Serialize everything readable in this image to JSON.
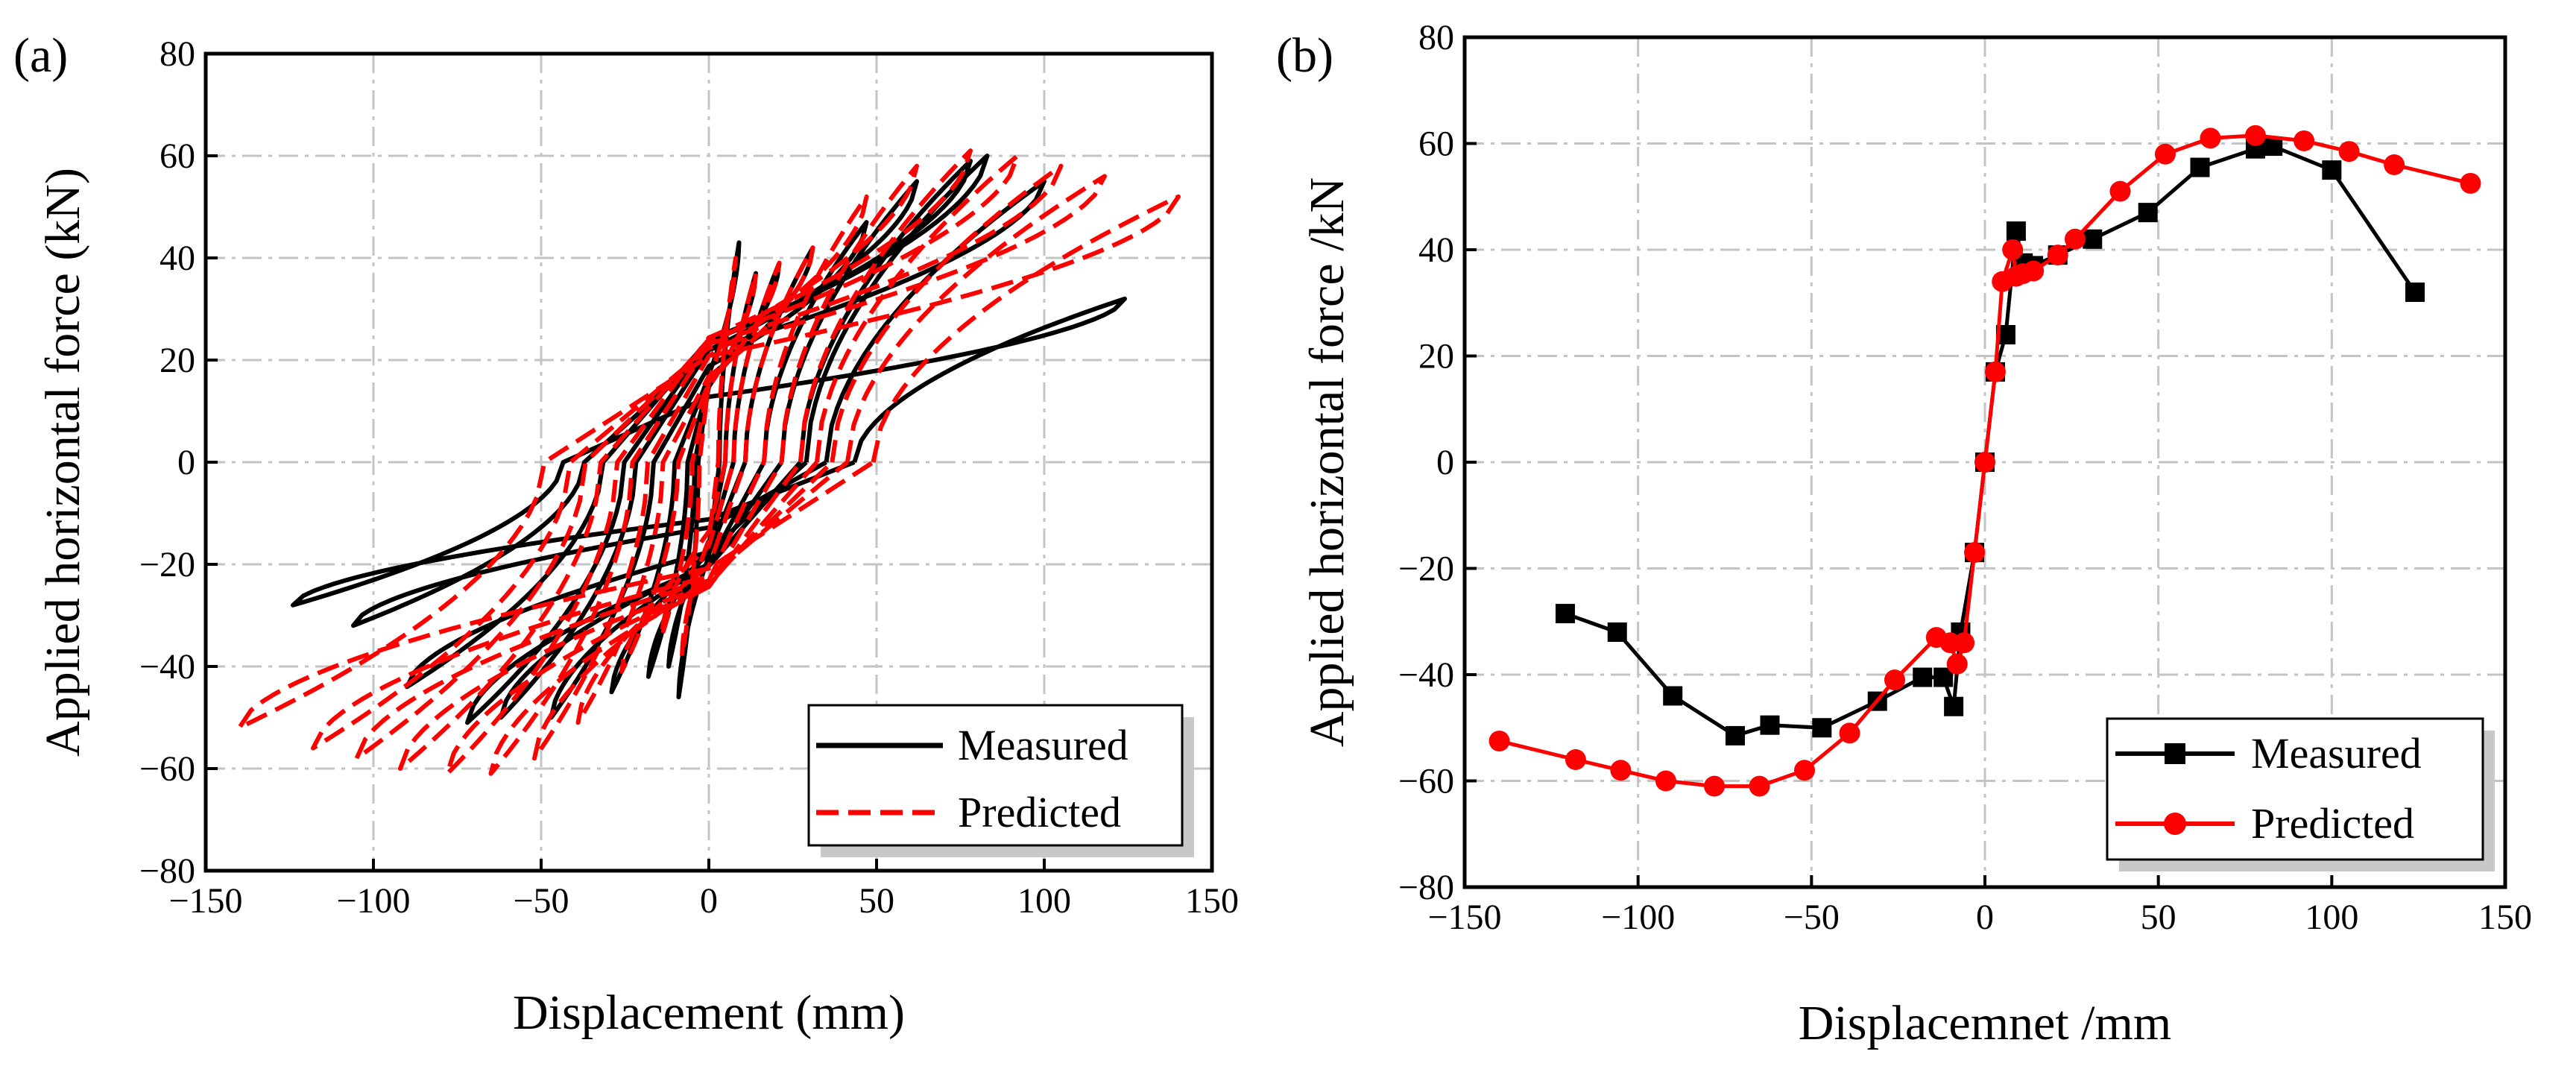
{
  "chart_data": [
    {
      "id": "a",
      "panel_label": "(a)",
      "type": "line",
      "title": "",
      "xlabel": "Displacement (mm)",
      "ylabel": "Applied horizontal force (kN)",
      "xlim": [
        -150,
        150
      ],
      "ylim": [
        -80,
        80
      ],
      "xticks": [
        -150,
        -100,
        -50,
        0,
        50,
        100,
        150
      ],
      "yticks": [
        -80,
        -60,
        -40,
        -20,
        0,
        20,
        40,
        60,
        80
      ],
      "xtick_labels": [
        "−150",
        "−100",
        "−50",
        "0",
        "50",
        "100",
        "150"
      ],
      "ytick_labels": [
        "−80",
        "−60",
        "−40",
        "−20",
        "0",
        "20",
        "40",
        "60",
        "80"
      ],
      "grid": true,
      "legend_position": "bottom-right",
      "series": [
        {
          "name": "Measured",
          "color": "#000000",
          "style": "solid",
          "loops": [
            {
              "pos_disp": 9,
              "pos_force": 43,
              "neg_disp": -9,
              "neg_force": -46
            },
            {
              "pos_disp": 14,
              "pos_force": 37,
              "neg_disp": -12,
              "neg_force": -40
            },
            {
              "pos_disp": 21,
              "pos_force": 39,
              "neg_disp": -18,
              "neg_force": -42
            },
            {
              "pos_disp": 31,
              "pos_force": 42,
              "neg_disp": -29,
              "neg_force": -45
            },
            {
              "pos_disp": 47,
              "pos_force": 47,
              "neg_disp": -47,
              "neg_force": -50
            },
            {
              "pos_disp": 62,
              "pos_force": 55,
              "neg_disp": -62,
              "neg_force": -50
            },
            {
              "pos_disp": 78,
              "pos_force": 59,
              "neg_disp": -72,
              "neg_force": -51
            },
            {
              "pos_disp": 83,
              "pos_force": 60,
              "neg_disp": -90,
              "neg_force": -44
            },
            {
              "pos_disp": 100,
              "pos_force": 55,
              "neg_disp": -106,
              "neg_force": -32
            },
            {
              "pos_disp": 124,
              "pos_force": 32,
              "neg_disp": -124,
              "neg_force": -28
            }
          ]
        },
        {
          "name": "Predicted",
          "color": "#ff0000",
          "style": "dashed",
          "loops": [
            {
              "pos_disp": 8,
              "pos_force": 40,
              "neg_disp": -8,
              "neg_force": -38
            },
            {
              "pos_disp": 14,
              "pos_force": 37,
              "neg_disp": -14,
              "neg_force": -34
            },
            {
              "pos_disp": 21,
              "pos_force": 39,
              "neg_disp": -26,
              "neg_force": -41
            },
            {
              "pos_disp": 31,
              "pos_force": 42,
              "neg_disp": -39,
              "neg_force": -51
            },
            {
              "pos_disp": 47,
              "pos_force": 52,
              "neg_disp": -52,
              "neg_force": -58
            },
            {
              "pos_disp": 62,
              "pos_force": 58,
              "neg_disp": -65,
              "neg_force": -61
            },
            {
              "pos_disp": 78,
              "pos_force": 61,
              "neg_disp": -78,
              "neg_force": -61
            },
            {
              "pos_disp": 92,
              "pos_force": 60,
              "neg_disp": -92,
              "neg_force": -60
            },
            {
              "pos_disp": 105,
              "pos_force": 58,
              "neg_disp": -105,
              "neg_force": -58
            },
            {
              "pos_disp": 118,
              "pos_force": 56,
              "neg_disp": -118,
              "neg_force": -56
            },
            {
              "pos_disp": 140,
              "pos_force": 52,
              "neg_disp": -140,
              "neg_force": -52
            }
          ]
        }
      ]
    },
    {
      "id": "b",
      "panel_label": "(b)",
      "type": "line",
      "title": "",
      "xlabel": "Displacemnet /mm",
      "ylabel": "Applied horizontal force /kN",
      "xlim": [
        -150,
        150
      ],
      "ylim": [
        -80,
        80
      ],
      "xticks": [
        -150,
        -100,
        -50,
        0,
        50,
        100,
        150
      ],
      "yticks": [
        -80,
        -60,
        -40,
        -20,
        0,
        20,
        40,
        60,
        80
      ],
      "xtick_labels": [
        "−150",
        "−100",
        "−50",
        "0",
        "50",
        "100",
        "150"
      ],
      "ytick_labels": [
        "−80",
        "−60",
        "−40",
        "−20",
        "0",
        "20",
        "40",
        "60",
        "80"
      ],
      "grid": true,
      "legend_position": "bottom-right",
      "series": [
        {
          "name": "Measured",
          "color": "#000000",
          "marker": "square",
          "x": [
            -121,
            -106,
            -90,
            -72,
            -62,
            -47,
            -31,
            -18,
            -12,
            -9,
            -7,
            -3,
            0,
            3,
            6,
            9,
            11,
            14,
            21,
            31,
            47,
            62,
            78,
            83,
            100,
            124
          ],
          "y": [
            -28.5,
            -32,
            -44,
            -51.5,
            -49.5,
            -50,
            -45,
            -40.5,
            -40.5,
            -46,
            -32,
            -17,
            0,
            17,
            24,
            43.5,
            37.5,
            37,
            39,
            42,
            47,
            55.5,
            59,
            59.5,
            55,
            32
          ]
        },
        {
          "name": "Predicted",
          "color": "#ff0000",
          "marker": "circle",
          "x": [
            -140,
            -118,
            -105,
            -92,
            -78,
            -65,
            -52,
            -39,
            -26,
            -14,
            -10,
            -8,
            -6,
            -3,
            0,
            3,
            5,
            8,
            9,
            11,
            14,
            21,
            26,
            39,
            52,
            65,
            78,
            92,
            105,
            118,
            140
          ],
          "y": [
            -52.5,
            -56,
            -58,
            -60,
            -61,
            -61,
            -58,
            -51,
            -41,
            -33,
            -34,
            -38,
            -34,
            -17,
            0,
            17,
            34,
            40,
            35,
            35.5,
            36,
            39,
            42,
            51,
            58,
            61,
            61.5,
            60.5,
            58.5,
            56,
            52.5
          ]
        }
      ]
    }
  ]
}
